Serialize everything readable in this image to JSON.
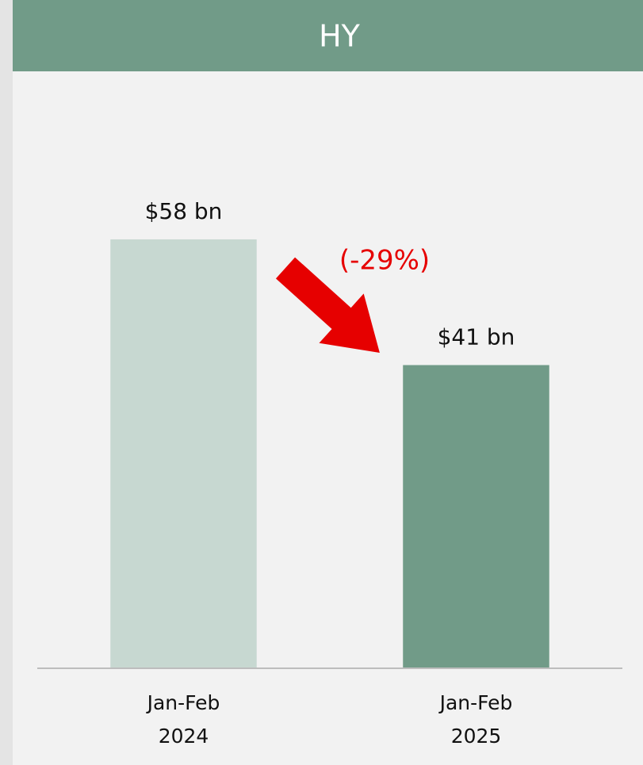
{
  "chart_data": {
    "type": "bar",
    "title": "HY",
    "categories": [
      "Jan-Feb 2024",
      "Jan-Feb 2025"
    ],
    "values": [
      58,
      41
    ],
    "value_labels": [
      "$58 bn",
      "$41 bn"
    ],
    "colors": [
      "#c7d8d1",
      "#719b88"
    ],
    "annotation": "(-29%)",
    "ylim": [
      0,
      70
    ]
  }
}
